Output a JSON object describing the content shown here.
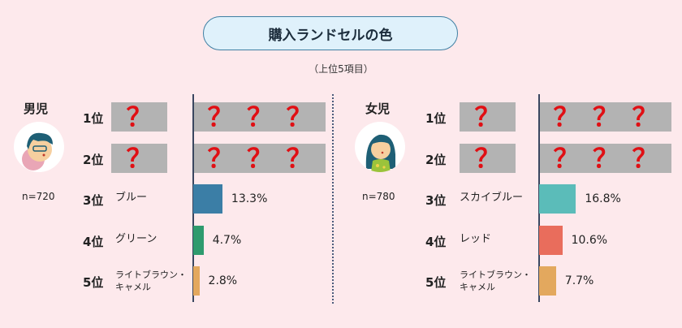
{
  "title": "購入ランドセルの色",
  "subtitle": "（上位5項目）",
  "chart_data": {
    "type": "bar",
    "orientation": "horizontal",
    "title": "購入ランドセルの色",
    "subtitle": "（上位5項目）",
    "unit": "%",
    "xlim": [
      0,
      18
    ],
    "groups": [
      {
        "name": "男児",
        "n": "n=720",
        "avatar_icon": "boy-avatar-icon",
        "hidden_mark": "？",
        "ranks": [
          {
            "rank": "1位",
            "category": "",
            "value": null,
            "hidden": true
          },
          {
            "rank": "2位",
            "category": "",
            "value": null,
            "hidden": true
          },
          {
            "rank": "3位",
            "category": "ブルー",
            "value": 13.3,
            "label": "13.3%",
            "color": "#3b7ea6"
          },
          {
            "rank": "4位",
            "category": "グリーン",
            "value": 4.7,
            "label": "4.7%",
            "color": "#2e9b6e"
          },
          {
            "rank": "5位",
            "category": "ライトブラウン・\nキャメル",
            "value": 2.8,
            "label": "2.8%",
            "color": "#e3a85e"
          }
        ]
      },
      {
        "name": "女児",
        "n": "n=780",
        "avatar_icon": "girl-avatar-icon",
        "hidden_mark": "？",
        "ranks": [
          {
            "rank": "1位",
            "category": "",
            "value": null,
            "hidden": true
          },
          {
            "rank": "2位",
            "category": "",
            "value": null,
            "hidden": true
          },
          {
            "rank": "3位",
            "category": "スカイブルー",
            "value": 16.8,
            "label": "16.8%",
            "color": "#5bbcb9"
          },
          {
            "rank": "4位",
            "category": "レッド",
            "value": 10.6,
            "label": "10.6%",
            "color": "#e96d5c"
          },
          {
            "rank": "5位",
            "category": "ライトブラウン・\nキャメル",
            "value": 7.7,
            "label": "7.7%",
            "color": "#e3a85e"
          }
        ]
      }
    ]
  },
  "colors": {
    "background": "#fde9ec",
    "title_fill": "#dff1fb",
    "title_border": "#3f7fa3",
    "hidden_box": "#b3b3b3",
    "question_mark": "#e00f14",
    "axis": "#3a4760"
  }
}
